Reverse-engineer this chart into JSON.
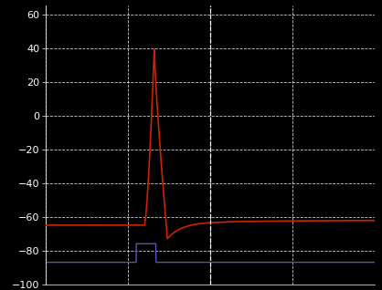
{
  "background_color": "#000000",
  "plot_bg_color": "#000000",
  "tick_color": "#ffffff",
  "grid_color": "#ffffff",
  "ylim": [
    -100,
    65
  ],
  "xlim": [
    0,
    100
  ],
  "yticks": [
    -100,
    -80,
    -60,
    -40,
    -20,
    0,
    20,
    40,
    60
  ],
  "xticks_grid": [
    0,
    25,
    50,
    75,
    100
  ],
  "vline_x": 50,
  "red_line_color": "#cc2200",
  "blue_line_color": "#5555bb",
  "figsize": [
    4.18,
    3.18
  ],
  "dpi": 100,
  "red_rest": -65.0,
  "red_peak": 40.0,
  "red_trough": -73.0,
  "red_recovery": -63.0,
  "blue_base": -87.0,
  "blue_pulse": -76.0,
  "spike_start": 30.0,
  "spike_rise_end": 33.0,
  "spike_fall_end": 37.0,
  "hyperpol_end": 55.0,
  "pulse_start": 27.5,
  "pulse_end": 33.5
}
